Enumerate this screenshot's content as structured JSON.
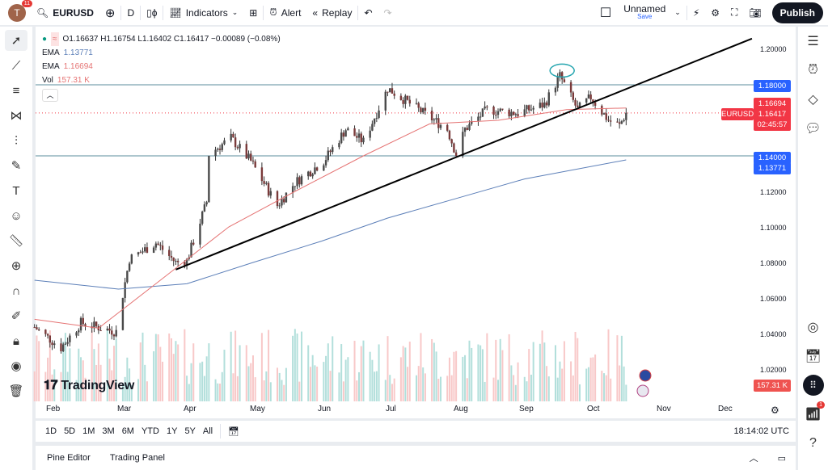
{
  "topbar": {
    "avatar_letter": "T",
    "notifications": "11",
    "symbol": "EURUSD",
    "interval": "D",
    "indicators": "Indicators",
    "alert": "Alert",
    "replay": "Replay",
    "layout_name": "Unnamed",
    "save": "Save",
    "publish": "Publish"
  },
  "legend": {
    "ohlc": "O1.16637 H1.16754 L1.16402 C1.16417 −0.00089 (−0.08%)",
    "ema1_label": "EMA",
    "ema1_value": "1.13771",
    "ema2_label": "EMA",
    "ema2_value": "1.16694",
    "vol_label": "Vol",
    "vol_value": "157.31 K"
  },
  "price_axis": {
    "ticks": [
      "1.20000",
      "1.12000",
      "1.10000",
      "1.08000",
      "1.06000",
      "1.04000",
      "1.02000"
    ],
    "tags": {
      "level_high": "1.18000",
      "ema_fast": "1.16694",
      "symbol": "EURUSD",
      "last": "1.16417",
      "countdown": "02:45:57",
      "level_low": "1.14000",
      "ema_slow": "1.13771",
      "volume": "157.31 K"
    }
  },
  "time_axis": [
    "Feb",
    "Mar",
    "Apr",
    "May",
    "Jun",
    "Jul",
    "Aug",
    "Sep",
    "Oct",
    "Nov",
    "Dec"
  ],
  "ranges": [
    "1D",
    "5D",
    "1M",
    "3M",
    "6M",
    "YTD",
    "1Y",
    "5Y",
    "All"
  ],
  "clock": "18:14:02 UTC",
  "bottom_tabs": [
    "Pine Editor",
    "Trading Panel"
  ],
  "logo": "TradingView",
  "rightbar_badge": "1",
  "colors": {
    "ema_fast": "#e57373",
    "ema_slow": "#5c7fb8",
    "level_tag": "#2962ff",
    "last_tag": "#f23645",
    "up_volume": "#b2dfdb",
    "down_volume": "#f8c8c8",
    "annotation": "#26a6b0"
  },
  "chart_data": {
    "type": "candlestick",
    "symbol": "EURUSD",
    "interval": "D",
    "ylim": [
      1.005,
      1.21
    ],
    "close_path": [
      [
        "2025-01-22",
        1.0436
      ],
      [
        "2025-02-03",
        1.032
      ],
      [
        "2025-02-12",
        1.046
      ],
      [
        "2025-02-28",
        1.041
      ],
      [
        "2025-03-03",
        1.062
      ],
      [
        "2025-03-06",
        1.082
      ],
      [
        "2025-03-18",
        1.091
      ],
      [
        "2025-03-27",
        1.08
      ],
      [
        "2025-04-01",
        1.081
      ],
      [
        "2025-04-10",
        1.114
      ],
      [
        "2025-04-11",
        1.141
      ],
      [
        "2025-04-21",
        1.15
      ],
      [
        "2025-04-30",
        1.137
      ],
      [
        "2025-05-12",
        1.112
      ],
      [
        "2025-05-20",
        1.125
      ],
      [
        "2025-06-02",
        1.137
      ],
      [
        "2025-06-12",
        1.155
      ],
      [
        "2025-06-20",
        1.148
      ],
      [
        "2025-07-01",
        1.178
      ],
      [
        "2025-07-15",
        1.166
      ],
      [
        "2025-07-28",
        1.155
      ],
      [
        "2025-08-01",
        1.141
      ],
      [
        "2025-08-05",
        1.155
      ],
      [
        "2025-08-15",
        1.166
      ],
      [
        "2025-08-29",
        1.164
      ],
      [
        "2025-09-10",
        1.169
      ],
      [
        "2025-09-17",
        1.185
      ],
      [
        "2025-09-25",
        1.166
      ],
      [
        "2025-10-01",
        1.173
      ],
      [
        "2025-10-09",
        1.16
      ],
      [
        "2025-10-14",
        1.157
      ],
      [
        "2025-10-17",
        1.16417
      ]
    ],
    "ema_fast": [
      [
        "2025-01-22",
        1.048
      ],
      [
        "2025-02-20",
        1.043
      ],
      [
        "2025-03-20",
        1.07
      ],
      [
        "2025-04-20",
        1.1
      ],
      [
        "2025-05-20",
        1.12
      ],
      [
        "2025-06-20",
        1.14
      ],
      [
        "2025-07-20",
        1.158
      ],
      [
        "2025-08-20",
        1.16
      ],
      [
        "2025-09-20",
        1.166
      ],
      [
        "2025-10-17",
        1.16694
      ]
    ],
    "ema_slow": [
      [
        "2025-01-22",
        1.07
      ],
      [
        "2025-03-01",
        1.065
      ],
      [
        "2025-04-01",
        1.068
      ],
      [
        "2025-05-01",
        1.08
      ],
      [
        "2025-06-01",
        1.092
      ],
      [
        "2025-07-01",
        1.105
      ],
      [
        "2025-08-01",
        1.116
      ],
      [
        "2025-09-01",
        1.127
      ],
      [
        "2025-10-17",
        1.13771
      ]
    ],
    "horizontal_levels": [
      1.18,
      1.14
    ],
    "trendline": [
      [
        "2025-03-27",
        1.076
      ],
      [
        "2025-12-13",
        1.206
      ]
    ],
    "annotation_circle": [
      "2025-09-18",
      1.188
    ]
  }
}
